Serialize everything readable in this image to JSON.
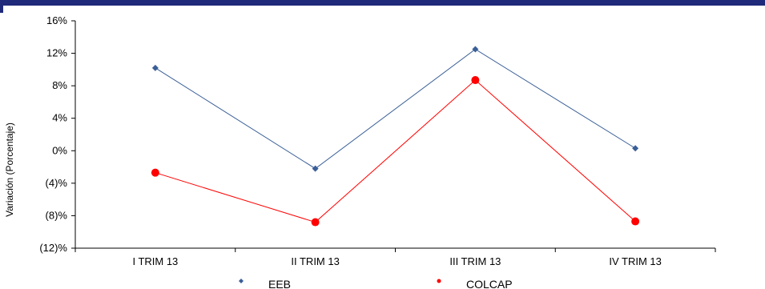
{
  "chart_data": {
    "type": "line",
    "categories": [
      "I TRIM 13",
      "II TRIM 13",
      "III TRIM 13",
      "IV TRIM 13"
    ],
    "series": [
      {
        "name": "EEB",
        "values": [
          10.2,
          -2.2,
          12.5,
          0.3
        ],
        "color": "#3a5f97",
        "marker": "diamond"
      },
      {
        "name": "COLCAP",
        "values": [
          -2.7,
          -8.8,
          8.7,
          -8.7
        ],
        "color": "#ff0000",
        "marker": "circle"
      }
    ],
    "ylabel": "Variación (Porcentaje)",
    "xlabel": "",
    "ylim": [
      -12,
      16
    ],
    "yticks": [
      16,
      12,
      8,
      4,
      0,
      -4,
      -8,
      -12
    ],
    "ytick_labels": [
      "16%",
      "12%",
      "8%",
      "4%",
      "0%",
      "(4)%",
      "(8)%",
      "(12)%"
    ],
    "legend_position": "bottom",
    "grid": false
  },
  "header_bar_color": "#1f2a7a"
}
